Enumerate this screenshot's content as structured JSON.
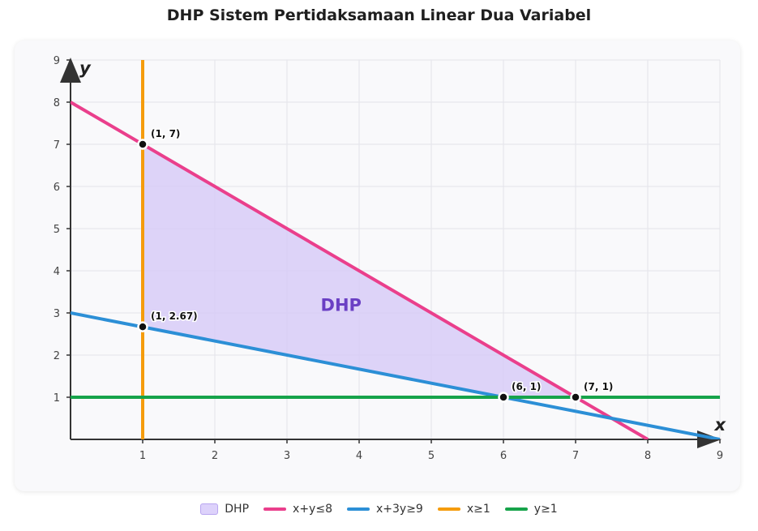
{
  "title": "DHP Sistem Pertidaksamaan Linear Dua Variabel",
  "chart_data": {
    "type": "line",
    "xlabel": "x",
    "ylabel": "y",
    "xlim": [
      0,
      9
    ],
    "ylim": [
      0,
      9
    ],
    "xticks": [
      1,
      2,
      3,
      4,
      5,
      6,
      7,
      8,
      9
    ],
    "yticks": [
      1,
      2,
      3,
      4,
      5,
      6,
      7,
      8,
      9
    ],
    "grid": true,
    "region": {
      "name": "DHP",
      "label": "DHP",
      "color": "#d6c9f7",
      "label_color": "#6a3fc4",
      "vertices": [
        [
          1,
          7
        ],
        [
          1,
          2.67
        ],
        [
          6,
          1
        ],
        [
          7,
          1
        ]
      ]
    },
    "series": [
      {
        "name": "x+y≤8",
        "color": "#ea3f8c",
        "points": [
          [
            0,
            8
          ],
          [
            8,
            0
          ]
        ]
      },
      {
        "name": "x+3y≥9",
        "color": "#2c8fd6",
        "points": [
          [
            0,
            3
          ],
          [
            9,
            0
          ]
        ]
      },
      {
        "name": "x≥1",
        "color": "#f59c0c",
        "points": [
          [
            1,
            0
          ],
          [
            1,
            9
          ]
        ]
      },
      {
        "name": "y≥1",
        "color": "#16a34a",
        "points": [
          [
            0,
            1
          ],
          [
            9,
            1
          ]
        ]
      }
    ],
    "points": [
      {
        "x": 1,
        "y": 7,
        "label": "(1, 7)"
      },
      {
        "x": 1,
        "y": 2.67,
        "label": "(1, 2.67)"
      },
      {
        "x": 6,
        "y": 1,
        "label": "(6, 1)"
      },
      {
        "x": 7,
        "y": 1,
        "label": "(7, 1)"
      }
    ],
    "legend": {
      "position": "bottom",
      "items": [
        {
          "label": "DHP",
          "kind": "box",
          "color": "#ddd2fb"
        },
        {
          "label": "x+y≤8",
          "kind": "line",
          "color": "#ea3f8c"
        },
        {
          "label": "x+3y≥9",
          "kind": "line",
          "color": "#2c8fd6"
        },
        {
          "label": "x≥1",
          "kind": "line",
          "color": "#f59c0c"
        },
        {
          "label": "y≥1",
          "kind": "line",
          "color": "#16a34a"
        }
      ]
    }
  }
}
